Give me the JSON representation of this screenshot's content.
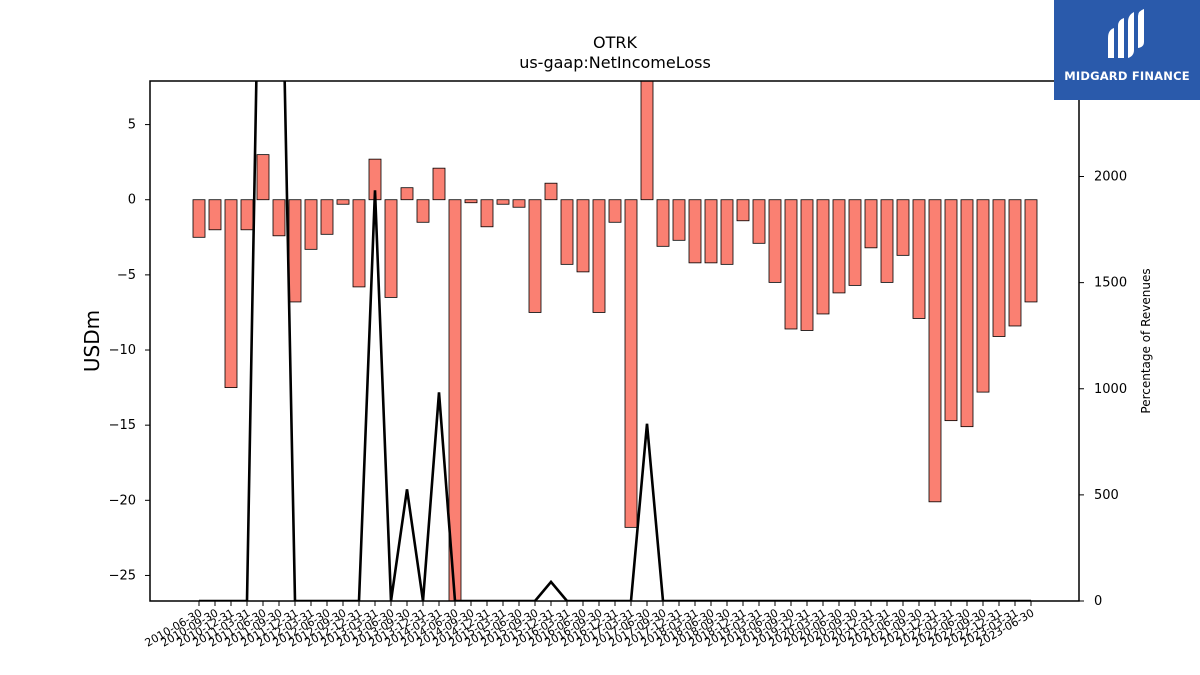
{
  "chart_data": {
    "type": "bar",
    "title": "OTRK",
    "subtitle": "us-gaap:NetIncomeLoss",
    "ylabel": "USDm",
    "y2label": "Percentage of Revenues",
    "ylim": [
      -26.7,
      7.9
    ],
    "y2lim": [
      0,
      2450
    ],
    "yticks": [
      5,
      0,
      -5,
      -10,
      -15,
      -20,
      -25
    ],
    "y2ticks": [
      0,
      500,
      1000,
      1500,
      2000
    ],
    "categories": [
      "2010-06-30",
      "2010-09-30",
      "2010-12-31",
      "2011-03-31",
      "2011-06-30",
      "2011-09-30",
      "2011-12-31",
      "2012-03-31",
      "2012-06-30",
      "2012-09-30",
      "2012-12-31",
      "2013-03-31",
      "2013-06-30",
      "2013-09-30",
      "2013-12-31",
      "2014-03-31",
      "2014-06-30",
      "2014-09-30",
      "2014-12-31",
      "2015-03-31",
      "2015-06-30",
      "2015-09-30",
      "2015-12-31",
      "2016-03-31",
      "2016-06-30",
      "2016-09-30",
      "2016-12-31",
      "2017-03-31",
      "2017-06-30",
      "2017-09-30",
      "2017-12-31",
      "2018-03-31",
      "2018-06-30",
      "2018-09-30",
      "2018-12-31",
      "2019-03-31",
      "2019-06-30",
      "2019-09-30",
      "2019-12-31",
      "2020-03-31",
      "2020-06-30",
      "2020-09-30",
      "2020-12-31",
      "2021-03-31",
      "2021-06-30",
      "2021-09-30",
      "2021-12-31",
      "2022-03-31",
      "2022-06-30",
      "2022-09-30",
      "2022-12-31",
      "2023-03-31",
      "2023-06-30"
    ],
    "series": [
      {
        "kind": "bar",
        "axis": "left",
        "color": "#fa8072",
        "values": [
          -2.5,
          -2.0,
          -12.5,
          -2.0,
          3.0,
          -2.4,
          -6.8,
          -3.3,
          -2.3,
          -0.3,
          -5.8,
          2.7,
          -6.5,
          0.8,
          -1.5,
          2.1,
          -26.7,
          -0.2,
          -1.8,
          -0.3,
          -0.5,
          -7.5,
          1.1,
          -4.3,
          -4.8,
          -7.5,
          -1.5,
          -21.8,
          7.9,
          -3.1,
          -2.7,
          -4.2,
          -4.2,
          -4.3,
          -1.4,
          -2.9,
          -5.5,
          -8.6,
          -8.7,
          -7.6,
          -6.2,
          -5.7,
          -3.2,
          -5.5,
          -3.7,
          -7.9,
          -20.1,
          -14.7,
          -15.1,
          -12.8,
          -9.1,
          -8.4,
          -6.8
        ]
      },
      {
        "kind": "line",
        "axis": "right",
        "color": "#000000",
        "values": [
          0,
          0,
          0,
          0,
          4200,
          3800,
          0,
          0,
          0,
          0,
          0,
          1935,
          0,
          526,
          0,
          983,
          0,
          0,
          0,
          0,
          0,
          0,
          90,
          0,
          0,
          0,
          0,
          0,
          835,
          0,
          0,
          0,
          0,
          0,
          0,
          0,
          0,
          0,
          0,
          0,
          0,
          0,
          0,
          0,
          0,
          0,
          0,
          0,
          0,
          0,
          0,
          0,
          0
        ]
      }
    ],
    "grid": false,
    "legend": "none"
  },
  "logo": {
    "text": "MIDGARD FINANCE"
  }
}
